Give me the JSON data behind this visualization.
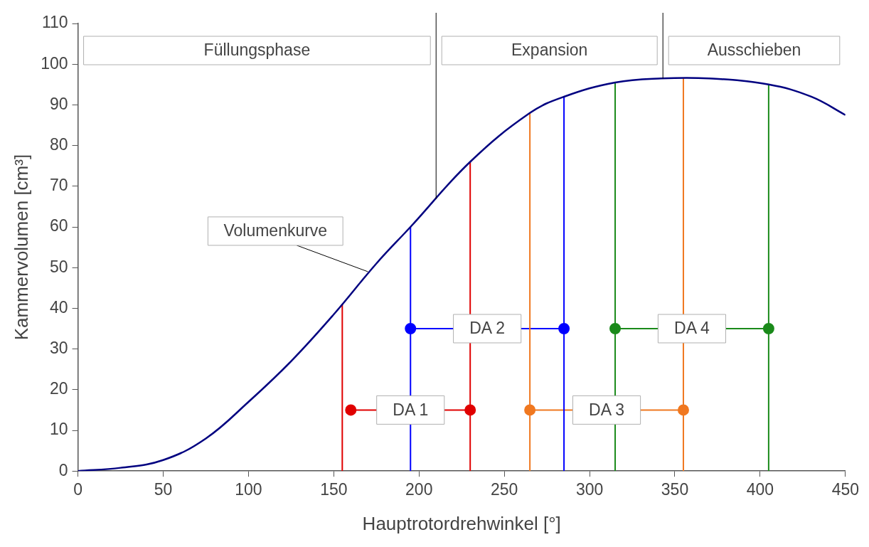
{
  "chart_data": {
    "type": "line",
    "xlabel": "Hauptrotordrehwinkel [°]",
    "ylabel": "Kammervolumen [cm³]",
    "xlim": [
      0,
      450
    ],
    "xticks": [
      0,
      50,
      100,
      150,
      200,
      250,
      300,
      350,
      400,
      450
    ],
    "ylim": [
      0,
      110
    ],
    "yticks": [
      0,
      10,
      20,
      30,
      40,
      50,
      60,
      70,
      80,
      90,
      100,
      110
    ],
    "grid": false,
    "legend": false,
    "series": [
      {
        "color": "#000080",
        "marker": "none",
        "x": [
          0,
          25,
          50,
          75,
          100,
          125,
          150,
          175,
          195,
          230,
          265,
          285,
          315,
          342,
          370,
          405,
          430,
          450
        ],
        "values": [
          0,
          0.8,
          2.7,
          8,
          17,
          27,
          38.5,
          51,
          60,
          76,
          88,
          92,
          95.5,
          96.5,
          96.5,
          95,
          92,
          87.5
        ]
      },
      {
        "color": "#e00000",
        "marker": "none",
        "x": [
          155,
          155
        ],
        "values": [
          0,
          41
        ]
      },
      {
        "color": "#e00000",
        "marker": "none",
        "x": [
          230,
          230
        ],
        "values": [
          0,
          76
        ]
      },
      {
        "color": "#0000ff",
        "marker": "none",
        "x": [
          195,
          195
        ],
        "values": [
          0,
          60
        ]
      },
      {
        "color": "#0000ff",
        "marker": "none",
        "x": [
          285,
          285
        ],
        "values": [
          0,
          92
        ]
      },
      {
        "color": "#f07820",
        "marker": "none",
        "x": [
          265,
          265
        ],
        "values": [
          0,
          88
        ]
      },
      {
        "color": "#f07820",
        "marker": "none",
        "x": [
          355,
          355
        ],
        "values": [
          0,
          96.5
        ]
      },
      {
        "color": "#1a8a1a",
        "marker": "none",
        "x": [
          315,
          315
        ],
        "values": [
          0,
          95.5
        ]
      },
      {
        "color": "#1a8a1a",
        "marker": "none",
        "x": [
          405,
          405
        ],
        "values": [
          0,
          95
        ]
      },
      {
        "color": "#e00000",
        "marker": "circle",
        "x": [
          160,
          230
        ],
        "values": [
          15,
          15
        ]
      },
      {
        "color": "#0000ff",
        "marker": "circle",
        "x": [
          195,
          285
        ],
        "values": [
          35,
          35
        ]
      },
      {
        "color": "#f07820",
        "marker": "circle",
        "x": [
          265,
          355
        ],
        "values": [
          15,
          15
        ]
      },
      {
        "color": "#1a8a1a",
        "marker": "circle",
        "x": [
          315,
          405
        ],
        "values": [
          35,
          35
        ]
      }
    ],
    "ref_lines": [
      {
        "axis": "x",
        "value": 210,
        "color": "#000000"
      },
      {
        "axis": "x",
        "value": 343,
        "color": "#000000"
      }
    ],
    "annotations": [
      "Füllungsphase",
      "Expansion",
      "Ausschieben",
      {
        "text": "Volumenkurve",
        "x": 170,
        "y": 49
      },
      {
        "text": "DA 1",
        "x": 195,
        "y": 15
      },
      {
        "text": "DA 2",
        "x": 240,
        "y": 35
      },
      {
        "text": "DA 3",
        "x": 310,
        "y": 15
      },
      {
        "text": "DA 4",
        "x": 360,
        "y": 35
      }
    ]
  }
}
